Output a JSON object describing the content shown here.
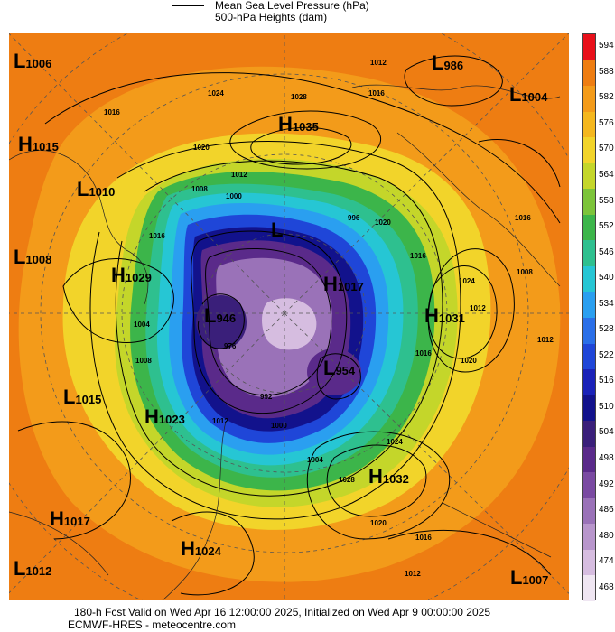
{
  "legend": {
    "line_label_1": "Mean Sea Level Pressure (hPa)",
    "line_label_2": "500-hPa Heights (dam)"
  },
  "colorbar": {
    "levels": [
      "594",
      "588",
      "582",
      "576",
      "570",
      "564",
      "558",
      "552",
      "546",
      "540",
      "534",
      "528",
      "522",
      "516",
      "510",
      "504",
      "498",
      "492",
      "486",
      "480",
      "474",
      "468"
    ],
    "colors": [
      "#e8101a",
      "#ee7d12",
      "#f39b1a",
      "#f4b71e",
      "#f2d42a",
      "#c4d62a",
      "#7cc43a",
      "#3cb54a",
      "#2ec08f",
      "#26c6d4",
      "#2a9ff0",
      "#2a6fe8",
      "#1f46d8",
      "#1a22b8",
      "#12128c",
      "#3a1f7a",
      "#5a2a8a",
      "#7a4aa2",
      "#9a72b8",
      "#b896cc",
      "#d6bde0",
      "#efe6f2"
    ]
  },
  "pressure_centers": [
    {
      "letter": "L",
      "value": "1006"
    },
    {
      "letter": "L",
      "value": "986"
    },
    {
      "letter": "L",
      "value": "1004"
    },
    {
      "letter": "H",
      "value": "1035"
    },
    {
      "letter": "H",
      "value": "1015"
    },
    {
      "letter": "L",
      "value": "1010"
    },
    {
      "letter": "L",
      "value": "1008"
    },
    {
      "letter": "H",
      "value": "1029"
    },
    {
      "letter": "L",
      "value": "946"
    },
    {
      "letter": "H",
      "value": "1017"
    },
    {
      "letter": "H",
      "value": "1031"
    },
    {
      "letter": "L",
      "value": "954"
    },
    {
      "letter": "L",
      "value": "1015"
    },
    {
      "letter": "H",
      "value": "1023"
    },
    {
      "letter": "H",
      "value": "1032"
    },
    {
      "letter": "H",
      "value": "1017"
    },
    {
      "letter": "H",
      "value": "1024"
    },
    {
      "letter": "L",
      "value": "1012"
    },
    {
      "letter": "L",
      "value": "1007"
    },
    {
      "letter": "L",
      "value": ""
    }
  ],
  "isobar_labels": [
    "1012",
    "1016",
    "1024",
    "1028",
    "1016",
    "1020",
    "1012",
    "1008",
    "1000",
    "996",
    "1020",
    "1016",
    "1024",
    "1016",
    "1008",
    "1012",
    "1020",
    "1016",
    "1004",
    "1008",
    "1012",
    "976",
    "992",
    "1000",
    "1024",
    "1028",
    "1020",
    "1016",
    "1012",
    "1004",
    "1016",
    "1012"
  ],
  "footer": {
    "line1": "180-h Fcst Valid on Wed Apr 16 12:00:00 2025, Initialized on Wed Apr  9 00:00:00 2025",
    "line2": "ECMWF-HRES  - meteocentre.com"
  }
}
